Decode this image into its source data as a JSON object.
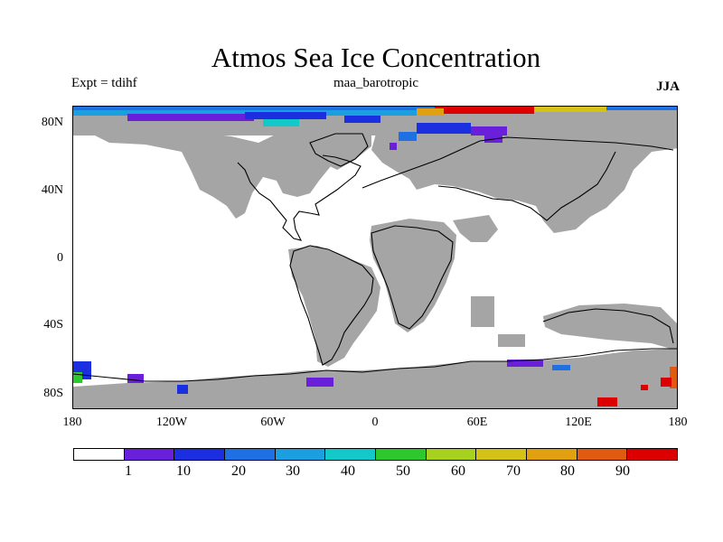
{
  "header": {
    "title": "Atmos Sea Ice Concentration",
    "experiment": "Expt = tdihf",
    "run_name": "maa_barotropic",
    "season": "JJA"
  },
  "map": {
    "lat_labels": [
      "80N",
      "40N",
      "0",
      "40S",
      "80S"
    ],
    "lon_labels": [
      "180",
      "120W",
      "60W",
      "0",
      "60E",
      "120E",
      "180"
    ],
    "land_color": "#a5a5a5",
    "coast_color": "#000000"
  },
  "colorbar": {
    "colors": [
      "#ffffff",
      "#6a1fdb",
      "#1c2fe0",
      "#1f70e3",
      "#1c9fe0",
      "#12c8c8",
      "#2ec82e",
      "#a6d11e",
      "#d4c219",
      "#e0a010",
      "#e05a10",
      "#dd0000"
    ],
    "labels": [
      "1",
      "10",
      "20",
      "30",
      "40",
      "50",
      "60",
      "70",
      "80",
      "90"
    ]
  }
}
